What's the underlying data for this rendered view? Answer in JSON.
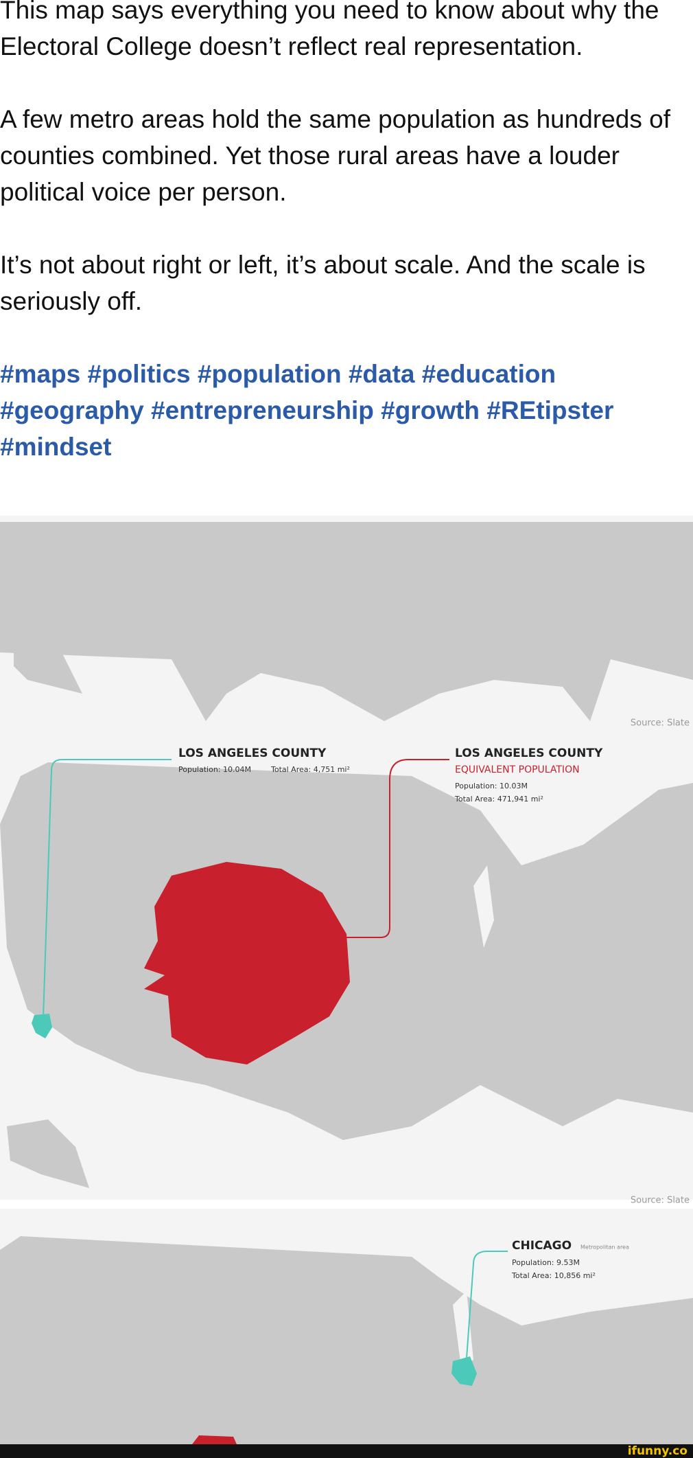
{
  "post": {
    "paragraphs": [
      "This map says everything you need to know about why the Electoral College doesn’t reflect real representation.",
      "A few metro areas hold the same population as hundreds of counties combined. Yet those rural areas have a louder political voice per person.",
      "It’s not about right or left, it’s about scale. And the scale is seriously off."
    ],
    "hashtags": [
      "#maps",
      "#politics",
      "#population",
      "#data",
      "#education",
      "#geography",
      "#entrepreneurship",
      "#growth",
      "#REtipster",
      "#mindset"
    ]
  },
  "map": {
    "sources": [
      "Source: Slate",
      "Source: Slate"
    ],
    "la": {
      "title": "LOS ANGELES COUNTY",
      "population": "Population: 10.04M",
      "area": "Total Area: 4,751 mi²"
    },
    "equivalent": {
      "title": "LOS ANGELES COUNTY",
      "subtitle": "EQUIVALENT POPULATION",
      "population": "Population: 10.03M",
      "area": "Total Area: 471,941 mi²"
    },
    "chicago": {
      "title": "CHICAGO",
      "note": "Metropolitan area",
      "population": "Population: 9.53M",
      "area": "Total Area: 10,856 mi²"
    }
  },
  "footer": {
    "watermark": "ifunny.co"
  }
}
